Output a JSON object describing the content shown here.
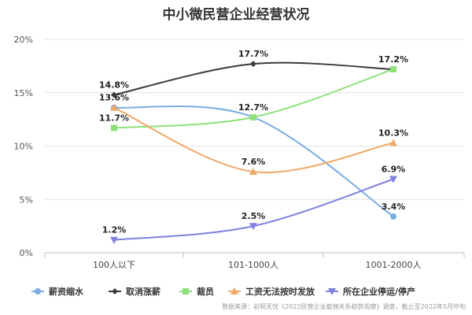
{
  "chart_data": {
    "type": "line",
    "title": "中小微民营企业经营状况",
    "categories": [
      "100人以下",
      "101-1000人",
      "1001-2000人"
    ],
    "ylim": [
      0,
      20
    ],
    "yticks": [
      "0%",
      "5%",
      "10%",
      "15%",
      "20%"
    ],
    "grid": true,
    "legend_position": "bottom",
    "series": [
      {
        "name": "薪资缩水",
        "values": [
          13.6,
          12.7,
          3.4
        ],
        "color": "#7aaee0",
        "marker": "circle"
      },
      {
        "name": "取消涨薪",
        "values": [
          14.8,
          17.7,
          17.2
        ],
        "color": "#3a3a3a",
        "marker": "diamond"
      },
      {
        "name": "裁员",
        "values": [
          11.7,
          12.7,
          17.2
        ],
        "color": "#8ee07a",
        "marker": "square"
      },
      {
        "name": "工资无法按时发放",
        "values": [
          13.6,
          7.6,
          10.3
        ],
        "color": "#f0a868",
        "marker": "triangle"
      },
      {
        "name": "所在企业停运/停产",
        "values": [
          1.2,
          2.5,
          6.9
        ],
        "color": "#8080e0",
        "marker": "triangle-down"
      }
    ],
    "source": "数据来源：前程无忧《2022民营企业雇佣关系趋势观察》调查，截止至2022年5月中旬"
  }
}
